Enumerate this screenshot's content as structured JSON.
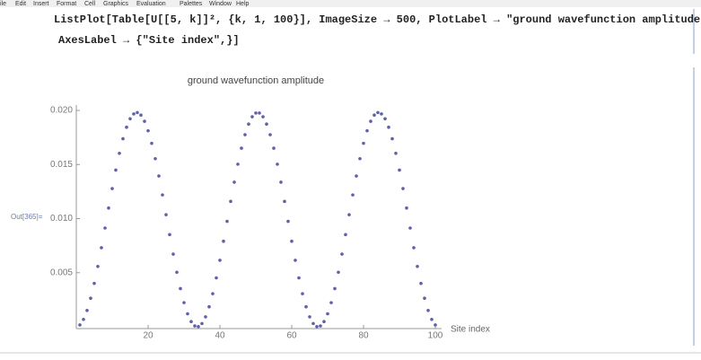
{
  "menu": [
    "ile",
    "Edit",
    "Insert",
    "Format",
    "Cell",
    "Graphics",
    "Evaluation",
    "Palettes",
    "Window",
    "Help"
  ],
  "input": {
    "lines": [
      "ListPlot[Table[U[[5, k]]², {k, 1, 100}], ImageSize → 500, PlotLabel → \"ground wavefunction amplitude\",",
      "AxesLabel → {\"Site index\",}]"
    ]
  },
  "output": {
    "label": "Out[365]="
  },
  "chart_data": {
    "type": "scatter",
    "title": "ground wavefunction amplitude",
    "x_label": "Site index",
    "color": "#5f61a6",
    "x": [
      1,
      2,
      3,
      4,
      5,
      6,
      7,
      8,
      9,
      10,
      11,
      12,
      13,
      14,
      15,
      16,
      17,
      18,
      19,
      20,
      21,
      22,
      23,
      24,
      25,
      26,
      27,
      28,
      29,
      30,
      31,
      32,
      33,
      34,
      35,
      36,
      37,
      38,
      39,
      40,
      41,
      42,
      43,
      44,
      45,
      46,
      47,
      48,
      49,
      50,
      51,
      52,
      53,
      54,
      55,
      56,
      57,
      58,
      59,
      60,
      61,
      62,
      63,
      64,
      65,
      66,
      67,
      68,
      69,
      70,
      71,
      72,
      73,
      74,
      75,
      76,
      77,
      78,
      79,
      80,
      81,
      82,
      83,
      84,
      85,
      86,
      87,
      88,
      89,
      90,
      91,
      92,
      93,
      94,
      95,
      96,
      97,
      98,
      99,
      100
    ],
    "values": [
      0.00017,
      0.00068,
      0.00151,
      0.00264,
      0.00401,
      0.00558,
      0.00731,
      0.00913,
      0.01098,
      0.01278,
      0.01449,
      0.01604,
      0.01738,
      0.01845,
      0.01923,
      0.01968,
      0.0198,
      0.01957,
      0.019,
      0.01812,
      0.01696,
      0.01554,
      0.01394,
      0.01219,
      0.01036,
      0.00852,
      0.00672,
      0.00504,
      0.00353,
      0.00223,
      0.0012,
      0.00048,
      8e-05,
      2e-05,
      0.0003,
      0.00092,
      0.00185,
      0.00306,
      0.00452,
      0.00615,
      0.00791,
      0.00975,
      0.01159,
      0.01337,
      0.01503,
      0.01651,
      0.01776,
      0.01874,
      0.01942,
      0.01976,
      0.01976,
      0.01942,
      0.01874,
      0.01776,
      0.01651,
      0.01503,
      0.01337,
      0.01159,
      0.00975,
      0.00791,
      0.00615,
      0.00452,
      0.00306,
      0.00185,
      0.00092,
      0.0003,
      2e-05,
      8e-05,
      0.00048,
      0.0012,
      0.00223,
      0.00353,
      0.00504,
      0.00672,
      0.00852,
      0.01036,
      0.01219,
      0.01394,
      0.01554,
      0.01696,
      0.01812,
      0.019,
      0.01957,
      0.0198,
      0.01968,
      0.01923,
      0.01845,
      0.01738,
      0.01604,
      0.01449,
      0.01278,
      0.01098,
      0.00913,
      0.00731,
      0.00558,
      0.00401,
      0.00264,
      0.00151,
      0.00068,
      0.00017
    ],
    "xlim": [
      0,
      101
    ],
    "ylim": [
      0,
      0.0205
    ],
    "xticks": [
      20,
      40,
      60,
      80,
      100
    ],
    "yticks": [
      0.005,
      {
        "value": 0.01,
        "label": "0.010"
      },
      0.015,
      {
        "value": 0.02,
        "label": "0.020"
      }
    ]
  }
}
